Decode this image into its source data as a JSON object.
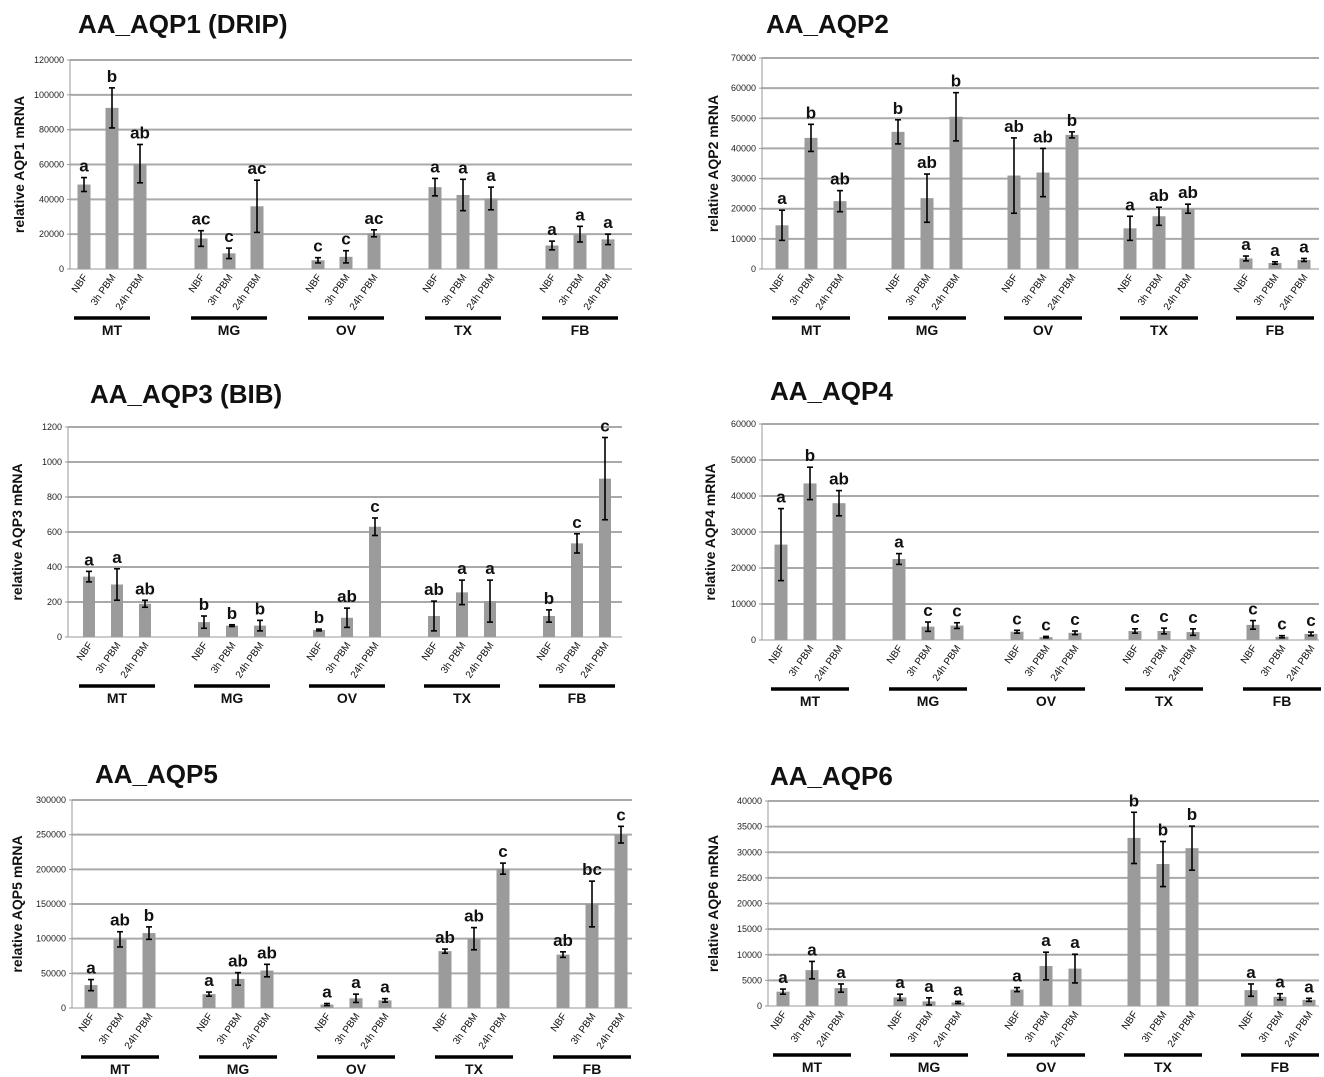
{
  "chart_data": [
    {
      "type": "bar",
      "title": "AA_AQP1 (DRIP)",
      "ylabel": "relative AQP1 mRNA",
      "ylim": [
        0,
        120000
      ],
      "yticks": [
        0,
        20000,
        40000,
        60000,
        80000,
        100000,
        120000
      ],
      "grid": true,
      "groups": [
        "MT",
        "MG",
        "OV",
        "TX",
        "FB"
      ],
      "categories": [
        "NBF",
        "3h PBM",
        "24h PBM"
      ],
      "values": [
        [
          48500,
          92500,
          60500
        ],
        [
          17500,
          9000,
          36000
        ],
        [
          5000,
          7000,
          20500
        ],
        [
          47000,
          42500,
          40500
        ],
        [
          13500,
          20000,
          17000
        ]
      ],
      "errors": [
        [
          4000,
          11500,
          11000
        ],
        [
          4500,
          3000,
          15000
        ],
        [
          1500,
          3500,
          2000
        ],
        [
          5000,
          9000,
          6500
        ],
        [
          2500,
          4500,
          3000
        ]
      ],
      "labels": [
        [
          "a",
          "b",
          "ab"
        ],
        [
          "ac",
          "c",
          "ac"
        ],
        [
          "c",
          "c",
          "ac"
        ],
        [
          "a",
          "a",
          "a"
        ],
        [
          "a",
          "a",
          "a"
        ]
      ]
    },
    {
      "type": "bar",
      "title": "AA_AQP2",
      "ylabel": "relative AQP2 mRNA",
      "ylim": [
        0,
        70000
      ],
      "yticks": [
        0,
        10000,
        20000,
        30000,
        40000,
        50000,
        60000,
        70000
      ],
      "grid": true,
      "groups": [
        "MT",
        "MG",
        "OV",
        "TX",
        "FB"
      ],
      "categories": [
        "NBF",
        "3h PBM",
        "24h PBM"
      ],
      "values": [
        [
          14500,
          43500,
          22500
        ],
        [
          45500,
          23500,
          50500
        ],
        [
          31000,
          32000,
          44500
        ],
        [
          13500,
          17500,
          20000
        ],
        [
          3500,
          2000,
          3000
        ]
      ],
      "errors": [
        [
          5000,
          4500,
          3500
        ],
        [
          4000,
          8000,
          8000
        ],
        [
          12500,
          8000,
          1000
        ],
        [
          4000,
          3000,
          1500
        ],
        [
          800,
          400,
          500
        ]
      ],
      "labels": [
        [
          "a",
          "b",
          "ab"
        ],
        [
          "b",
          "ab",
          "b"
        ],
        [
          "ab",
          "ab",
          "b"
        ],
        [
          "a",
          "ab",
          "ab"
        ],
        [
          "a",
          "a",
          "a"
        ]
      ]
    },
    {
      "type": "bar",
      "title": "AA_AQP3 (BIB)",
      "ylabel": "relative AQP3 mRNA",
      "ylim": [
        0,
        1200
      ],
      "yticks": [
        0,
        200,
        400,
        600,
        800,
        1000,
        1200
      ],
      "grid": true,
      "groups": [
        "MT",
        "MG",
        "OV",
        "TX",
        "FB"
      ],
      "categories": [
        "NBF",
        "3h PBM",
        "24h PBM"
      ],
      "values": [
        [
          345,
          300,
          190
        ],
        [
          85,
          65,
          65
        ],
        [
          40,
          110,
          630
        ],
        [
          120,
          255,
          205
        ],
        [
          120,
          535,
          905
        ]
      ],
      "errors": [
        [
          30,
          90,
          20
        ],
        [
          35,
          5,
          30
        ],
        [
          5,
          55,
          50
        ],
        [
          85,
          70,
          120
        ],
        [
          35,
          55,
          235
        ]
      ],
      "labels": [
        [
          "a",
          "a",
          "ab"
        ],
        [
          "b",
          "b",
          "b"
        ],
        [
          "b",
          "ab",
          "c"
        ],
        [
          "ab",
          "a",
          "a"
        ],
        [
          "b",
          "c",
          "c"
        ]
      ]
    },
    {
      "type": "bar",
      "title": "AA_AQP4",
      "ylabel": "relative AQP4 mRNA",
      "ylim": [
        0,
        60000
      ],
      "yticks": [
        0,
        10000,
        20000,
        30000,
        40000,
        50000,
        60000
      ],
      "grid": true,
      "groups": [
        "MT",
        "MG",
        "OV",
        "TX",
        "FB"
      ],
      "categories": [
        "NBF",
        "3h PBM",
        "24h PBM"
      ],
      "values": [
        [
          26500,
          43500,
          38000
        ],
        [
          22500,
          3700,
          4000
        ],
        [
          2300,
          800,
          2000
        ],
        [
          2500,
          2500,
          2200
        ],
        [
          4200,
          900,
          1700
        ]
      ],
      "errors": [
        [
          10000,
          4500,
          3500
        ],
        [
          1500,
          1300,
          800
        ],
        [
          400,
          200,
          500
        ],
        [
          600,
          800,
          900
        ],
        [
          1200,
          300,
          500
        ]
      ],
      "labels": [
        [
          "a",
          "b",
          "ab"
        ],
        [
          "a",
          "c",
          "c"
        ],
        [
          "c",
          "c",
          "c"
        ],
        [
          "c",
          "c",
          "c"
        ],
        [
          "c",
          "c",
          "c"
        ]
      ]
    },
    {
      "type": "bar",
      "title": "AA_AQP5",
      "ylabel": "relative AQP5 mRNA",
      "ylim": [
        0,
        300000
      ],
      "yticks": [
        0,
        50000,
        100000,
        150000,
        200000,
        250000,
        300000
      ],
      "grid": true,
      "groups": [
        "MT",
        "MG",
        "OV",
        "TX",
        "FB"
      ],
      "categories": [
        "NBF",
        "3h PBM",
        "24h PBM"
      ],
      "values": [
        [
          33000,
          99000,
          108000
        ],
        [
          20000,
          42000,
          54000
        ],
        [
          5000,
          14000,
          11000
        ],
        [
          82000,
          100000,
          201000
        ],
        [
          77000,
          150000,
          250000
        ]
      ],
      "errors": [
        [
          8000,
          11000,
          9000
        ],
        [
          3000,
          9000,
          9000
        ],
        [
          1500,
          6000,
          2500
        ],
        [
          3000,
          16000,
          8000
        ],
        [
          4000,
          33000,
          12000
        ]
      ],
      "labels": [
        [
          "a",
          "ab",
          "b"
        ],
        [
          "a",
          "ab",
          "ab"
        ],
        [
          "a",
          "a",
          "a"
        ],
        [
          "ab",
          "ab",
          "c"
        ],
        [
          "ab",
          "bc",
          "c"
        ]
      ]
    },
    {
      "type": "bar",
      "title": "AA_AQP6",
      "ylabel": "relative AQP6 mRNA",
      "ylim": [
        0,
        40000
      ],
      "yticks": [
        0,
        5000,
        10000,
        15000,
        20000,
        25000,
        30000,
        35000,
        40000
      ],
      "grid": true,
      "groups": [
        "MT",
        "MG",
        "OV",
        "TX",
        "FB"
      ],
      "categories": [
        "NBF",
        "3h PBM",
        "24h PBM"
      ],
      "values": [
        [
          2800,
          7000,
          3500
        ],
        [
          1700,
          900,
          700
        ],
        [
          3200,
          7800,
          7300
        ],
        [
          32800,
          27700,
          30800
        ],
        [
          3100,
          1800,
          1200
        ]
      ],
      "errors": [
        [
          500,
          1700,
          800
        ],
        [
          600,
          700,
          200
        ],
        [
          400,
          2700,
          2800
        ],
        [
          5000,
          4400,
          4300
        ],
        [
          1200,
          600,
          300
        ]
      ],
      "labels": [
        [
          "a",
          "a",
          "a"
        ],
        [
          "a",
          "a",
          "a"
        ],
        [
          "a",
          "a",
          "a"
        ],
        [
          "b",
          "b",
          "b"
        ],
        [
          "a",
          "a",
          "a"
        ]
      ]
    }
  ]
}
